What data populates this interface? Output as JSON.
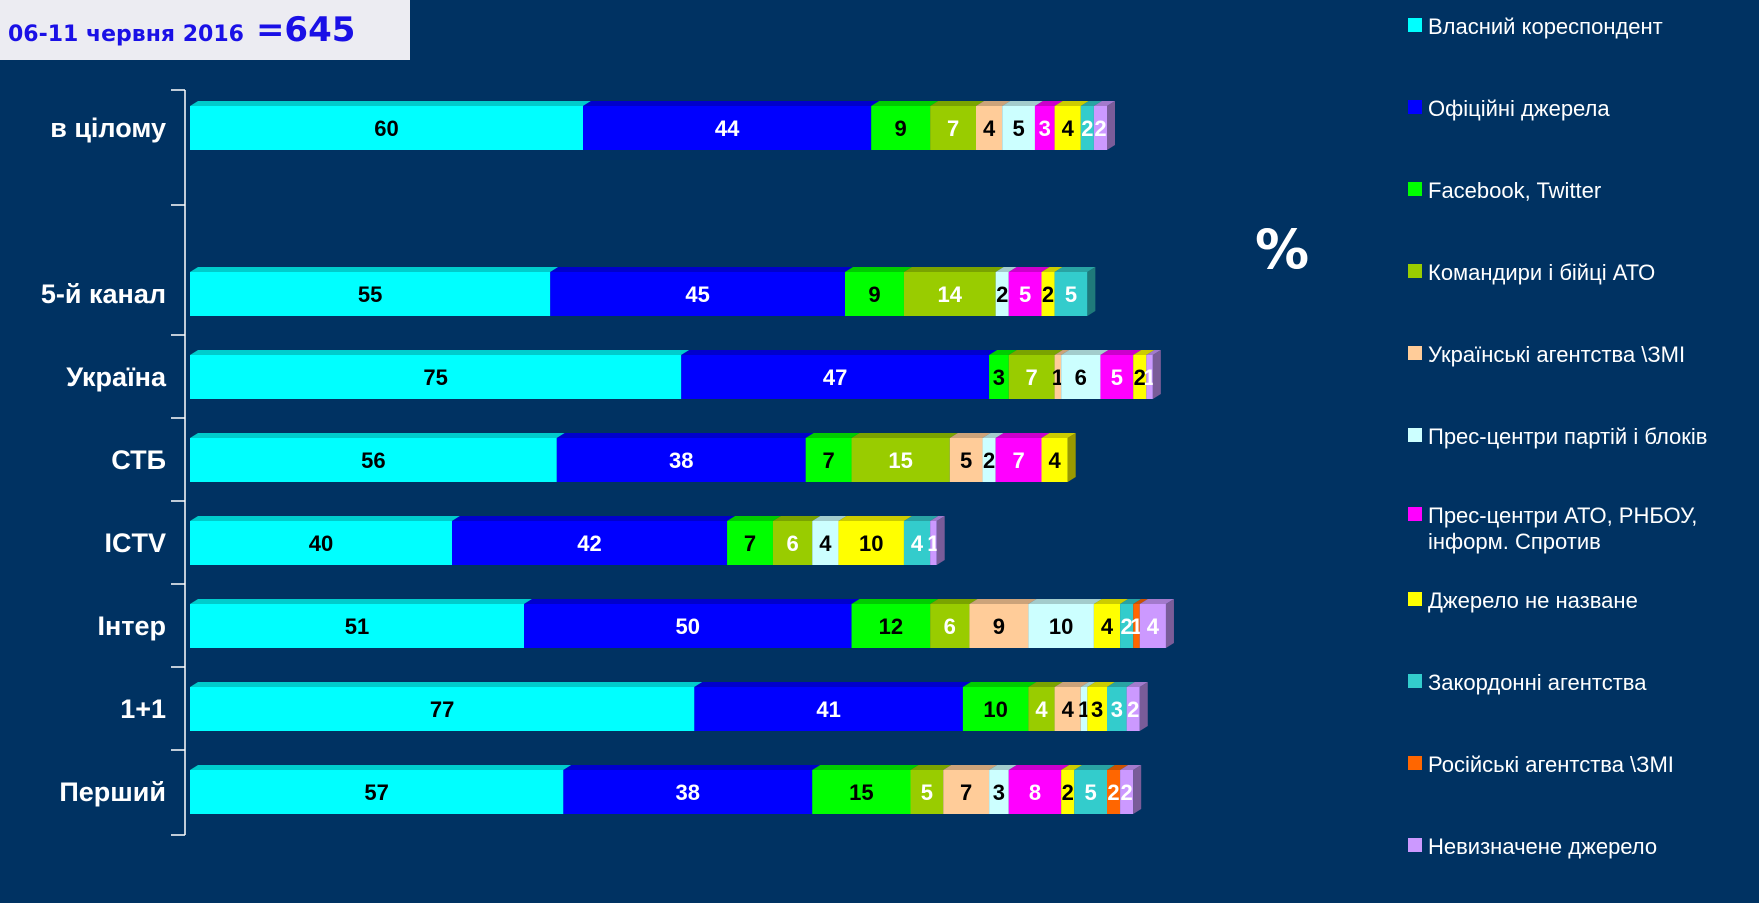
{
  "header": {
    "date": "06-11 червня 2016",
    "sample": "=645"
  },
  "unit": "%",
  "colors": [
    "#00ffff",
    "#0000ff",
    "#00ff00",
    "#99cc00",
    "#ffcc99",
    "#ccffff",
    "#ff00ff",
    "#ffff00",
    "#33cccc",
    "#ff6600",
    "#cc99ff"
  ],
  "label_colors": [
    "#000000",
    "#ffffff",
    "#000000",
    "#ffffff",
    "#000000",
    "#000000",
    "#ffffff",
    "#000000",
    "#ffffff",
    "#ffffff",
    "#ffffff"
  ],
  "legend": [
    "Власний кореспондент",
    "Офіційні джерела",
    "Facebook, Twitter",
    "Командири і бійці АТО",
    "Українські агентства \\ЗМІ",
    "Прес-центри партій і блоків",
    "Прес-центри АТО, РНБОУ, інформ. Спротив",
    "Джерело не назване",
    "Закордонні агентства",
    "Російські агентства \\ЗМІ",
    "Невизначене джерело"
  ],
  "chart_data": {
    "type": "bar",
    "orientation": "horizontal",
    "stacked": true,
    "categories": [
      "в цілому",
      "5-й канал",
      "Україна",
      "СТБ",
      "ICTV",
      "Інтер",
      "1+1",
      "Перший"
    ],
    "series": [
      {
        "name": "Власний кореспондент",
        "values": [
          60,
          55,
          75,
          56,
          40,
          51,
          77,
          57
        ]
      },
      {
        "name": "Офіційні джерела",
        "values": [
          44,
          45,
          47,
          38,
          42,
          50,
          41,
          38
        ]
      },
      {
        "name": "Facebook, Twitter",
        "values": [
          9,
          9,
          3,
          7,
          7,
          12,
          10,
          15
        ]
      },
      {
        "name": "Командири і бійці АТО",
        "values": [
          7,
          14,
          7,
          15,
          6,
          6,
          4,
          5
        ]
      },
      {
        "name": "Українські агентства \\ЗМІ",
        "values": [
          4,
          0,
          1,
          5,
          0,
          9,
          4,
          7
        ]
      },
      {
        "name": "Прес-центри партій і блоків",
        "values": [
          5,
          2,
          6,
          2,
          4,
          10,
          1,
          3
        ]
      },
      {
        "name": "Прес-центри АТО, РНБОУ, інформ. Спротив",
        "values": [
          3,
          5,
          5,
          7,
          0,
          0,
          0,
          8
        ]
      },
      {
        "name": "Джерело не назване",
        "values": [
          4,
          2,
          2,
          4,
          10,
          4,
          3,
          2
        ]
      },
      {
        "name": "Закордонні агентства",
        "values": [
          2,
          5,
          0,
          0,
          4,
          2,
          3,
          5
        ]
      },
      {
        "name": "Російські агентства \\ЗМІ",
        "values": [
          0,
          0,
          0,
          0,
          0,
          1,
          0,
          2
        ]
      },
      {
        "name": "Невизначене джерело",
        "values": [
          2,
          0,
          1,
          0,
          1,
          4,
          2,
          2
        ]
      }
    ],
    "grid": false,
    "legend_position": "right"
  }
}
